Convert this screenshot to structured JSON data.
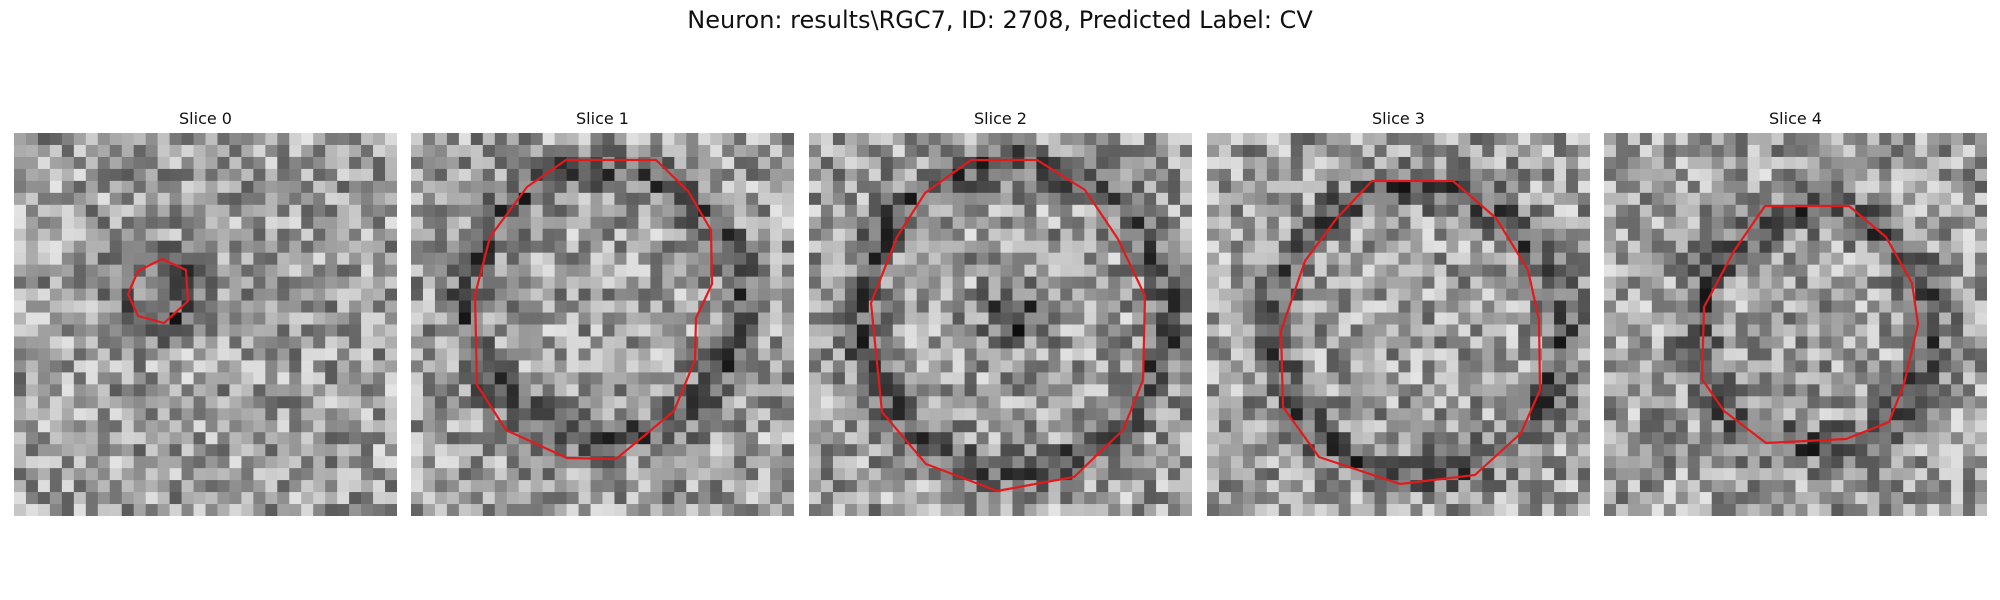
{
  "figure": {
    "title": "Neuron: results\\RGC7, ID: 2708, Predicted Label: CV"
  },
  "panels": [
    {
      "title": "Slice 0"
    },
    {
      "title": "Slice 1"
    },
    {
      "title": "Slice 2"
    },
    {
      "title": "Slice 3"
    },
    {
      "title": "Slice 4"
    }
  ],
  "style": {
    "contour_color": "#e31a1c",
    "colormap": "gray"
  }
}
